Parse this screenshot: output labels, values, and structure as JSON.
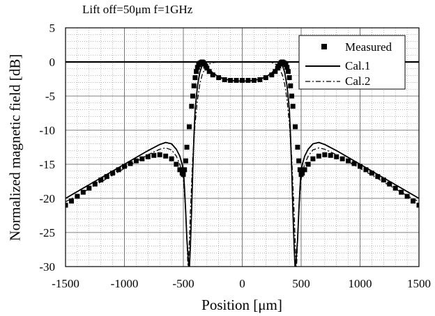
{
  "chart_data": {
    "type": "scatter",
    "title": "Lift off=50μm  f=1GHz",
    "xlabel": "Position [μm]",
    "ylabel": "Normalized magnetic field [dB]",
    "xlim": [
      -1500,
      1500
    ],
    "ylim": [
      -30,
      5
    ],
    "xticks": [
      -1500,
      -1000,
      -500,
      0,
      500,
      1000,
      1500
    ],
    "xtick_labels": [
      "-1500",
      "-1000",
      "-500",
      "0",
      "500",
      "1000",
      "1500"
    ],
    "yticks": [
      5,
      0,
      -5,
      -10,
      -15,
      -20,
      -25,
      -30
    ],
    "ytick_labels": [
      "5",
      "0",
      "-5",
      "-10",
      "-15",
      "-20",
      "-25",
      "-30"
    ],
    "grid": true,
    "legend_position": "top-right",
    "reference_line_y": 0,
    "series": [
      {
        "name": "Measured",
        "style": "square-markers",
        "color": "#000000",
        "x": [
          -1500,
          -1450,
          -1400,
          -1350,
          -1300,
          -1250,
          -1200,
          -1150,
          -1100,
          -1050,
          -1000,
          -950,
          -900,
          -850,
          -800,
          -750,
          -700,
          -650,
          -600,
          -560,
          -530,
          -510,
          -500,
          -490,
          -480,
          -470,
          -450,
          -430,
          -420,
          -410,
          -400,
          -390,
          -380,
          -370,
          -360,
          -350,
          -340,
          -330,
          -320,
          -310,
          -300,
          -280,
          -250,
          -200,
          -150,
          -100,
          -50,
          0,
          50,
          100,
          150,
          200,
          250,
          280,
          300,
          310,
          320,
          330,
          340,
          350,
          360,
          370,
          380,
          390,
          400,
          410,
          420,
          430,
          450,
          470,
          480,
          490,
          500,
          510,
          530,
          560,
          600,
          650,
          700,
          750,
          800,
          850,
          900,
          950,
          1000,
          1050,
          1100,
          1150,
          1200,
          1250,
          1300,
          1350,
          1400,
          1450,
          1500
        ],
        "y": [
          -21.0,
          -20.4,
          -19.7,
          -19.1,
          -18.5,
          -17.9,
          -17.3,
          -16.8,
          -16.3,
          -15.8,
          -15.3,
          -14.9,
          -14.5,
          -14.2,
          -13.9,
          -13.7,
          -13.6,
          -13.8,
          -14.2,
          -15.0,
          -15.8,
          -16.3,
          -16.5,
          -15.8,
          -14.5,
          -12.5,
          -9.5,
          -6.5,
          -5.0,
          -3.5,
          -2.3,
          -1.4,
          -0.8,
          -0.4,
          -0.2,
          -0.1,
          0.0,
          -0.1,
          -0.3,
          -0.6,
          -0.9,
          -1.4,
          -1.9,
          -2.3,
          -2.6,
          -2.7,
          -2.7,
          -2.7,
          -2.7,
          -2.7,
          -2.6,
          -2.3,
          -1.9,
          -1.4,
          -0.9,
          -0.6,
          -0.3,
          -0.1,
          0.0,
          -0.1,
          -0.2,
          -0.4,
          -0.8,
          -1.4,
          -2.3,
          -3.5,
          -5.0,
          -6.5,
          -9.5,
          -12.5,
          -14.5,
          -15.8,
          -16.5,
          -16.3,
          -15.8,
          -15.0,
          -14.2,
          -13.8,
          -13.6,
          -13.7,
          -13.9,
          -14.2,
          -14.5,
          -14.9,
          -15.3,
          -15.8,
          -16.3,
          -16.8,
          -17.3,
          -17.9,
          -18.5,
          -19.1,
          -19.7,
          -20.4,
          -21.0
        ]
      },
      {
        "name": "Cal.1",
        "style": "solid",
        "color": "#000000",
        "x": [
          -1500,
          -1400,
          -1300,
          -1200,
          -1100,
          -1000,
          -900,
          -800,
          -700,
          -650,
          -600,
          -560,
          -530,
          -510,
          -500,
          -495,
          -490,
          -480,
          -470,
          -460,
          -452,
          -448,
          -440,
          -430,
          -420,
          -410,
          -400,
          -380,
          -360,
          -340,
          -330,
          -320,
          -310,
          -300,
          -280,
          -250,
          -200,
          -150,
          -100,
          -50,
          0,
          50,
          100,
          150,
          200,
          250,
          280,
          300,
          310,
          320,
          330,
          340,
          360,
          380,
          400,
          410,
          420,
          430,
          440,
          448,
          452,
          460,
          470,
          480,
          490,
          495,
          500,
          510,
          530,
          560,
          600,
          650,
          700,
          800,
          900,
          1000,
          1100,
          1200,
          1300,
          1400,
          1500
        ],
        "y": [
          -20.0,
          -19.0,
          -18.0,
          -17.0,
          -16.0,
          -15.0,
          -14.0,
          -13.0,
          -12.1,
          -11.8,
          -12.0,
          -12.8,
          -13.8,
          -15.0,
          -16.0,
          -17.0,
          -18.5,
          -22.0,
          -26.0,
          -28.5,
          -30.0,
          -30.0,
          -27.0,
          -22.0,
          -16.0,
          -11.0,
          -7.0,
          -3.5,
          -1.5,
          -0.5,
          -0.3,
          -0.3,
          -0.5,
          -0.7,
          -1.1,
          -1.6,
          -2.2,
          -2.5,
          -2.7,
          -2.8,
          -2.8,
          -2.8,
          -2.7,
          -2.5,
          -2.2,
          -1.6,
          -1.1,
          -0.7,
          -0.5,
          -0.3,
          -0.3,
          -0.5,
          -1.5,
          -3.5,
          -7.0,
          -11.0,
          -16.0,
          -22.0,
          -27.0,
          -30.0,
          -30.0,
          -28.5,
          -26.0,
          -22.0,
          -18.5,
          -17.0,
          -16.0,
          -15.0,
          -13.8,
          -12.8,
          -12.0,
          -11.8,
          -12.1,
          -13.0,
          -14.0,
          -15.0,
          -16.0,
          -17.0,
          -18.0,
          -19.0,
          -20.0
        ]
      },
      {
        "name": "Cal.2",
        "style": "dash-dot",
        "color": "#000000",
        "x": [
          -1500,
          -1400,
          -1300,
          -1200,
          -1100,
          -1000,
          -900,
          -800,
          -700,
          -650,
          -600,
          -560,
          -530,
          -505,
          -495,
          -480,
          -470,
          -462,
          -458,
          -450,
          -440,
          -420,
          -400,
          -380,
          -360,
          -340,
          -320,
          -300,
          -280,
          -250,
          -200,
          -150,
          -100,
          -50,
          0,
          50,
          100,
          150,
          200,
          250,
          280,
          300,
          320,
          340,
          360,
          380,
          400,
          420,
          440,
          450,
          458,
          462,
          470,
          480,
          495,
          505,
          530,
          560,
          600,
          650,
          700,
          800,
          900,
          1000,
          1100,
          1200,
          1300,
          1400,
          1500
        ],
        "y": [
          -20.5,
          -19.6,
          -18.6,
          -17.6,
          -16.6,
          -15.6,
          -14.6,
          -13.6,
          -12.8,
          -12.6,
          -12.9,
          -13.8,
          -15.0,
          -16.5,
          -18.0,
          -22.0,
          -26.0,
          -29.5,
          -30.0,
          -27.0,
          -22.0,
          -14.0,
          -9.0,
          -5.5,
          -3.2,
          -1.9,
          -1.1,
          -0.6,
          -0.3,
          -0.1,
          0.0,
          0.0,
          0.0,
          0.0,
          0.0,
          0.0,
          0.0,
          0.0,
          0.0,
          -0.1,
          -0.3,
          -0.6,
          -1.1,
          -1.9,
          -3.2,
          -5.5,
          -9.0,
          -14.0,
          -22.0,
          -27.0,
          -30.0,
          -29.5,
          -26.0,
          -22.0,
          -18.0,
          -16.5,
          -15.0,
          -13.8,
          -12.9,
          -12.6,
          -12.8,
          -13.6,
          -14.6,
          -15.6,
          -16.6,
          -17.6,
          -18.6,
          -19.6,
          -20.5
        ]
      }
    ]
  },
  "legend": [
    {
      "label": "Measured"
    },
    {
      "label": "Cal.1"
    },
    {
      "label": "Cal.2"
    }
  ]
}
